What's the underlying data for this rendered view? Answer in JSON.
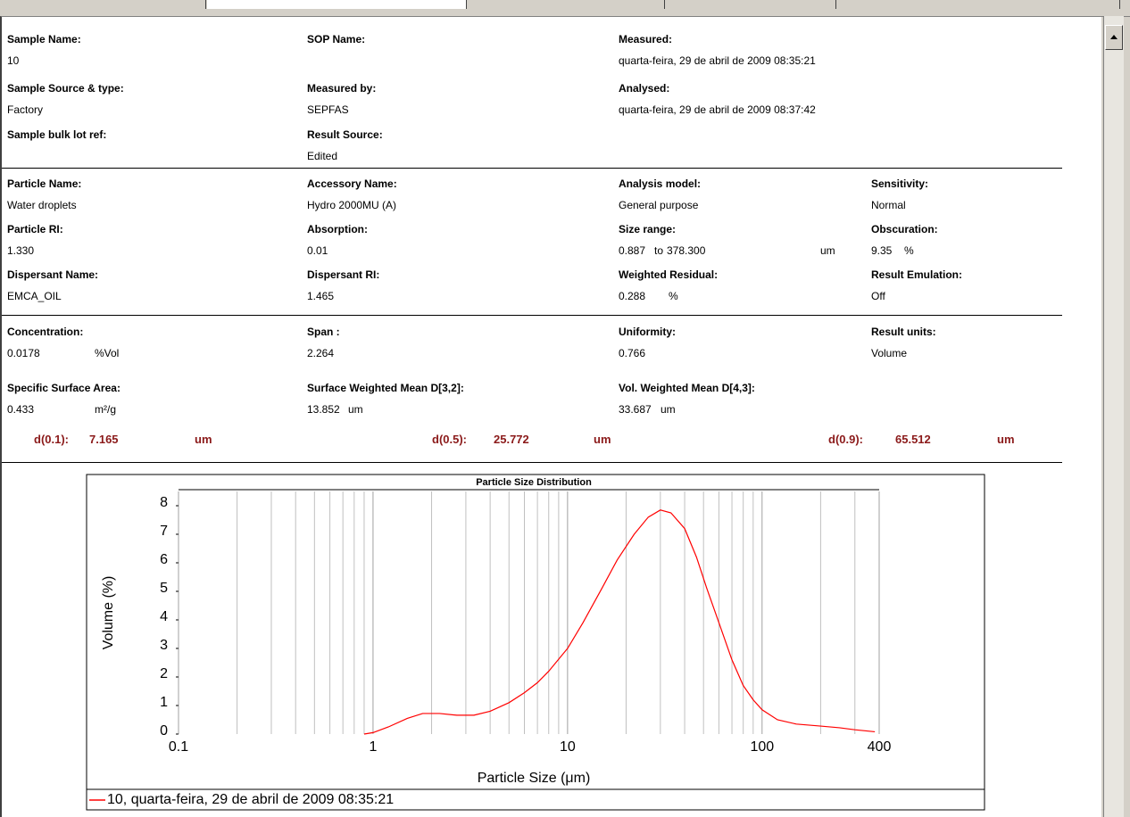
{
  "fields": {
    "sample_name": {
      "label": "Sample Name:",
      "value": "10"
    },
    "sop_name": {
      "label": "SOP Name:"
    },
    "measured": {
      "label": "Measured:",
      "value": "quarta-feira, 29 de abril de 2009 08:35:21"
    },
    "sample_source": {
      "label": "Sample Source & type:",
      "value": "Factory"
    },
    "measured_by": {
      "label": "Measured by:",
      "value": "SEPFAS"
    },
    "analysed": {
      "label": "Analysed:",
      "value": "quarta-feira, 29 de abril de 2009 08:37:42"
    },
    "sample_bulk_lot": {
      "label": "Sample bulk lot ref:"
    },
    "result_source": {
      "label": "Result Source:",
      "value": "Edited"
    },
    "particle_name": {
      "label": "Particle Name:",
      "value": "Water droplets"
    },
    "accessory_name": {
      "label": "Accessory Name:",
      "value": "Hydro 2000MU (A)"
    },
    "analysis_model": {
      "label": "Analysis model:",
      "value": "General purpose"
    },
    "sensitivity": {
      "label": "Sensitivity:",
      "value": "Normal"
    },
    "particle_ri": {
      "label": "Particle RI:",
      "value": "1.330"
    },
    "absorption": {
      "label": "Absorption:",
      "value": "0.01"
    },
    "size_range": {
      "label": "Size range:",
      "value": "0.887",
      "to": "to",
      "value2": "378.300",
      "unit": "um"
    },
    "obscuration": {
      "label": "Obscuration:",
      "value": "9.35",
      "unit": "%"
    },
    "dispersant_name": {
      "label": "Dispersant Name:",
      "value": "EMCA_OIL"
    },
    "dispersant_ri": {
      "label": "Dispersant RI:",
      "value": "1.465"
    },
    "weighted_residual": {
      "label": "Weighted Residual:",
      "value": "0.288",
      "unit": "%"
    },
    "result_emulation": {
      "label": "Result Emulation:",
      "value": "Off"
    },
    "concentration": {
      "label": "Concentration:",
      "value": "0.0178",
      "unit": "%Vol"
    },
    "span": {
      "label": "Span :",
      "value": "2.264"
    },
    "uniformity": {
      "label": "Uniformity:",
      "value": "0.766"
    },
    "result_units": {
      "label": "Result units:",
      "value": "Volume"
    },
    "specific_surface_area": {
      "label": "Specific Surface Area:",
      "value": "0.433",
      "unit": "m²/g"
    },
    "surface_weighted_mean": {
      "label": "Surface Weighted Mean D[3,2]:",
      "value": "13.852",
      "unit": "um"
    },
    "vol_weighted_mean": {
      "label": "Vol. Weighted Mean D[4,3]:",
      "value": "33.687",
      "unit": "um"
    },
    "d01": {
      "label": "d(0.1):",
      "value": "7.165",
      "unit": "um"
    },
    "d05": {
      "label": "d(0.5):",
      "value": "25.772",
      "unit": "um"
    },
    "d09": {
      "label": "d(0.9):",
      "value": "65.512",
      "unit": "um"
    }
  },
  "chart_data": {
    "type": "line",
    "title": "Particle Size Distribution",
    "xlabel": "Particle Size (μm)",
    "ylabel": "Volume (%)",
    "x": [
      0.9,
      1.0,
      1.2,
      1.5,
      1.8,
      2.2,
      2.7,
      3.3,
      4,
      5,
      6,
      7,
      8,
      10,
      12,
      15,
      18,
      22,
      26,
      30,
      34,
      40,
      46,
      52,
      60,
      70,
      80,
      90,
      100,
      120,
      150,
      200,
      250,
      300,
      380
    ],
    "series": [
      {
        "name": "10, quarta-feira, 29 de abril de 2009 08:35:21",
        "color": "#ff0000",
        "values": [
          0,
          0.05,
          0.25,
          0.55,
          0.72,
          0.72,
          0.66,
          0.66,
          0.8,
          1.1,
          1.45,
          1.8,
          2.2,
          3.0,
          3.9,
          5.1,
          6.1,
          7.0,
          7.6,
          7.85,
          7.75,
          7.2,
          6.2,
          5.1,
          3.9,
          2.6,
          1.7,
          1.2,
          0.85,
          0.5,
          0.35,
          0.28,
          0.22,
          0.15,
          0.08
        ]
      }
    ],
    "xscale": "log",
    "xlim": [
      0.1,
      400
    ],
    "xticks": [
      0.1,
      1,
      10,
      100,
      400
    ],
    "ylim": [
      0,
      8.5
    ],
    "yticks": [
      0,
      1,
      2,
      3,
      4,
      5,
      6,
      7,
      8
    ],
    "grid": "x",
    "legend": "bottom"
  }
}
